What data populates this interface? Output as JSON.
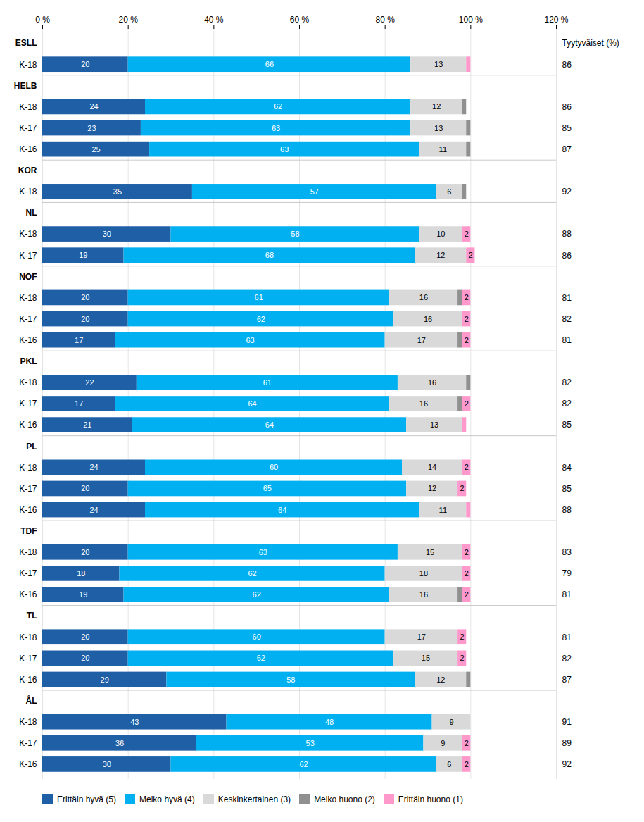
{
  "chart_data": {
    "type": "bar",
    "orientation": "horizontal",
    "stacked": true,
    "data_labels": true,
    "grid": true,
    "legend": "bottom",
    "categories": [
      "ESLL",
      "K-18",
      "HELB",
      "K-18",
      "K-17",
      "K-16",
      "KOR",
      "K-18",
      "NL",
      "K-18",
      "K-17",
      "NOF",
      "K-18",
      "K-17",
      "K-16",
      "PKL",
      "K-18",
      "K-17",
      "K-16",
      "PL",
      "K-18",
      "K-17",
      "K-16",
      "TDF",
      "K-18",
      "K-17",
      "K-16",
      "TL",
      "K-18",
      "K-17",
      "K-16",
      "ÅL",
      "K-18",
      "K-17",
      "K-16"
    ],
    "series": [
      {
        "name": "Erittäin hyvä (5)",
        "color": "#1f5fa6",
        "values": [
          null,
          20,
          null,
          24,
          23,
          25,
          null,
          35,
          null,
          30,
          19,
          null,
          20,
          20,
          17,
          null,
          22,
          17,
          21,
          null,
          24,
          20,
          24,
          null,
          20,
          18,
          19,
          null,
          20,
          20,
          29,
          null,
          43,
          36,
          30
        ]
      },
      {
        "name": "Melko hyvä (4)",
        "color": "#00b0f0",
        "values": [
          null,
          66,
          null,
          62,
          63,
          63,
          null,
          57,
          null,
          58,
          68,
          null,
          61,
          62,
          63,
          null,
          61,
          64,
          64,
          null,
          60,
          65,
          64,
          null,
          63,
          62,
          62,
          null,
          60,
          62,
          58,
          null,
          48,
          53,
          62
        ]
      },
      {
        "name": "Keskinkertainen (3)",
        "color": "#d9d9d9",
        "values": [
          null,
          13,
          null,
          12,
          13,
          11,
          null,
          6,
          null,
          10,
          12,
          null,
          16,
          16,
          17,
          null,
          16,
          16,
          13,
          null,
          14,
          12,
          11,
          null,
          15,
          18,
          16,
          null,
          17,
          15,
          12,
          null,
          9,
          9,
          6
        ]
      },
      {
        "name": "Melko huono (2)",
        "color": "#909090",
        "values": [
          null,
          0,
          null,
          1,
          1,
          1,
          null,
          1,
          null,
          0,
          0,
          null,
          1,
          0,
          1,
          null,
          1,
          1,
          0,
          null,
          0,
          0,
          0,
          null,
          0,
          0,
          1,
          null,
          0,
          0,
          1,
          null,
          0,
          0,
          0
        ]
      },
      {
        "name": "Erittäin huono (1)",
        "color": "#ff99cc",
        "values": [
          null,
          1,
          null,
          0,
          0,
          0,
          null,
          0,
          null,
          2,
          2,
          null,
          2,
          2,
          2,
          null,
          0,
          2,
          1,
          null,
          2,
          2,
          1,
          null,
          2,
          2,
          2,
          null,
          2,
          2,
          0,
          null,
          0,
          2,
          2
        ]
      }
    ],
    "xlim": [
      0,
      120
    ],
    "xticks": [
      {
        "value": 0,
        "label": "0 %"
      },
      {
        "value": 20,
        "label": "20 %"
      },
      {
        "value": 40,
        "label": "40 %"
      },
      {
        "value": 60,
        "label": "60 %"
      },
      {
        "value": 80,
        "label": "80 %"
      },
      {
        "value": 100,
        "label": "100 %"
      },
      {
        "value": 120,
        "label": "120 %"
      }
    ],
    "right_column": {
      "title": "Tyytyväiset (%)",
      "values": [
        null,
        86,
        null,
        86,
        85,
        87,
        null,
        92,
        null,
        88,
        86,
        null,
        81,
        82,
        81,
        null,
        82,
        82,
        85,
        null,
        84,
        85,
        88,
        null,
        83,
        79,
        81,
        null,
        81,
        82,
        87,
        null,
        91,
        89,
        92
      ]
    }
  }
}
